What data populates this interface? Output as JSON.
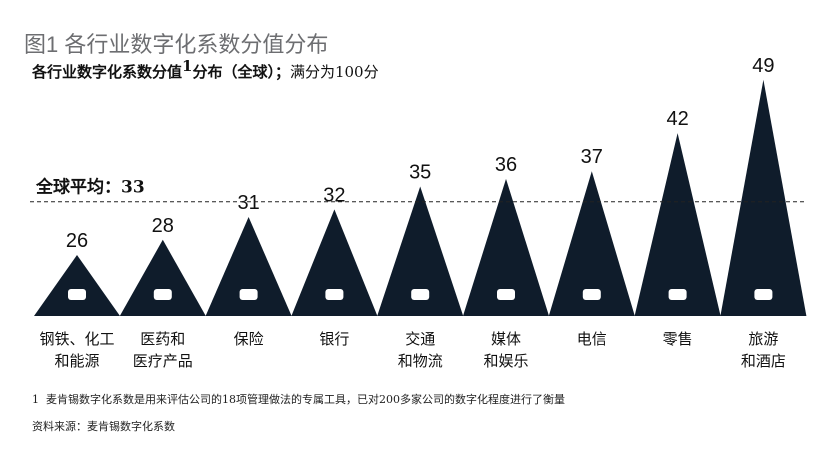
{
  "chart_data": {
    "type": "triangle",
    "title": "图1 各行业数字化系数分值分布",
    "subtitle": {
      "bold": "各行业数字化系数分值",
      "sup": "1",
      "bold_rest": "分布（全球）；",
      "normal": "满分为100分"
    },
    "categories": [
      [
        "钢铁、化工",
        "和能源"
      ],
      [
        "医药和",
        "医疗产品"
      ],
      [
        "保险"
      ],
      [
        "银行"
      ],
      [
        "交通",
        "和物流"
      ],
      [
        "媒体",
        "和娱乐"
      ],
      [
        "电信"
      ],
      [
        "零售"
      ],
      [
        "旅游",
        "和酒店"
      ]
    ],
    "values": [
      26,
      28,
      31,
      32,
      35,
      36,
      37,
      42,
      49
    ],
    "color": "#0f1c2b",
    "average": {
      "label": "全球平均：",
      "value": 33
    },
    "footnote": {
      "mark": "1",
      "text": "麦肯锡数字化系数是用来评估公司的18项管理做法的专属工具，已对200多家公司的数字化程度进行了衡量"
    },
    "source": "资料来源：麦肯锡数字化系数"
  }
}
